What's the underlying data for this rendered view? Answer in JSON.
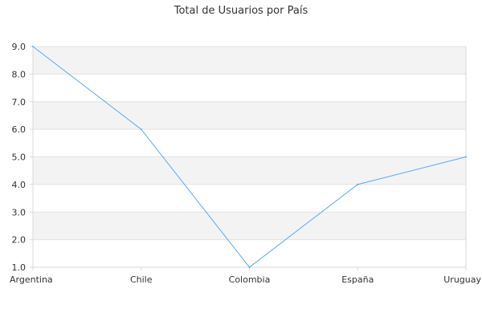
{
  "chart_data": {
    "type": "line",
    "title": "Total de Usuarios por País",
    "categories": [
      "Argentina",
      "Chile",
      "Colombia",
      "España",
      "Uruguay"
    ],
    "series": [
      {
        "values": [
          9,
          6,
          1,
          4,
          5
        ]
      }
    ],
    "ylim": [
      1,
      9
    ],
    "yticks": [
      "1.0",
      "2.0",
      "3.0",
      "4.0",
      "5.0",
      "6.0",
      "7.0",
      "8.0",
      "9.0"
    ],
    "grid": true,
    "band_colors": [
      "#f3f3f3",
      "#ffffff"
    ],
    "line_color": "#5aa9ee",
    "axis_color": "#d9d9d9",
    "grid_color": "#e2e2e2"
  }
}
